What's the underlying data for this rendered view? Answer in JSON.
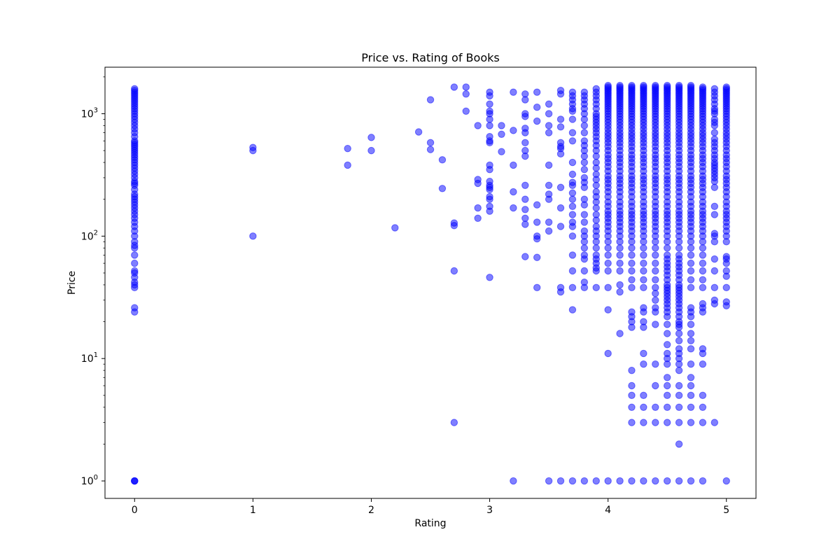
{
  "chart_data": {
    "type": "scatter",
    "title": "Price vs. Rating of Books",
    "xlabel": "Rating",
    "ylabel": "Price",
    "xlim": [
      -0.25,
      5.25
    ],
    "ylim": [
      0.72,
      2400
    ],
    "yscale": "log",
    "grid": false,
    "marker_color": "#0000ff",
    "marker_alpha": 0.5,
    "x_ticks": [
      {
        "value": 0,
        "label": "0"
      },
      {
        "value": 1,
        "label": "1"
      },
      {
        "value": 2,
        "label": "2"
      },
      {
        "value": 3,
        "label": "3"
      },
      {
        "value": 4,
        "label": "4"
      },
      {
        "value": 5,
        "label": "5"
      }
    ],
    "y_ticks": [
      {
        "value": 1,
        "base": "10",
        "exp": "0"
      },
      {
        "value": 10,
        "base": "10",
        "exp": "1"
      },
      {
        "value": 100,
        "base": "10",
        "exp": "2"
      },
      {
        "value": 1000,
        "base": "10",
        "exp": "3"
      }
    ],
    "y_minor_ticks": [
      2,
      3,
      4,
      5,
      6,
      7,
      8,
      9,
      20,
      30,
      40,
      50,
      60,
      70,
      80,
      90,
      200,
      300,
      400,
      500,
      600,
      700,
      800,
      900,
      2000
    ],
    "columns": [
      {
        "x": 0,
        "values": [
          1,
          1,
          1,
          24,
          26,
          38,
          40,
          42,
          46,
          50,
          52,
          60,
          70,
          80,
          84,
          90,
          100,
          110,
          120,
          130,
          140,
          150,
          160,
          170,
          180,
          190,
          200,
          210,
          220,
          240,
          260,
          270,
          280,
          300,
          320,
          340,
          360,
          380,
          400,
          420,
          440,
          460,
          480,
          500,
          520,
          540,
          560,
          580,
          600,
          650,
          700,
          750,
          800,
          850,
          900,
          950,
          1000,
          1050,
          1100,
          1150,
          1200,
          1250,
          1300,
          1350,
          1400,
          1450,
          1500,
          1550,
          1600
        ]
      },
      {
        "x": 1,
        "values": [
          100,
          500,
          530
        ]
      },
      {
        "x": 1.8,
        "values": [
          380,
          520
        ]
      },
      {
        "x": 2,
        "values": [
          500,
          640
        ]
      },
      {
        "x": 2.2,
        "values": [
          117
        ]
      },
      {
        "x": 2.4,
        "values": [
          710
        ]
      },
      {
        "x": 2.5,
        "values": [
          510,
          580,
          1300
        ]
      },
      {
        "x": 2.6,
        "values": [
          245,
          420
        ]
      },
      {
        "x": 2.7,
        "values": [
          3,
          52,
          122,
          128,
          1650
        ]
      },
      {
        "x": 2.8,
        "values": [
          1050,
          1450,
          1650
        ]
      },
      {
        "x": 2.9,
        "values": [
          140,
          170,
          270,
          290,
          800
        ]
      },
      {
        "x": 3,
        "values": [
          46,
          160,
          175,
          200,
          210,
          240,
          250,
          260,
          280,
          350,
          380,
          580,
          600,
          650,
          800,
          900,
          1000,
          1050,
          1200,
          1400,
          1500
        ]
      },
      {
        "x": 3.1,
        "values": [
          490,
          680,
          800
        ]
      },
      {
        "x": 3.2,
        "values": [
          1,
          170,
          230,
          380,
          730,
          1500
        ]
      },
      {
        "x": 3.3,
        "values": [
          68,
          125,
          140,
          165,
          200,
          260,
          450,
          500,
          580,
          700,
          760,
          950,
          1000,
          1300,
          1450
        ]
      },
      {
        "x": 3.4,
        "values": [
          38,
          67,
          95,
          100,
          130,
          180,
          870,
          1130,
          1500
        ]
      },
      {
        "x": 3.5,
        "values": [
          1,
          110,
          130,
          200,
          220,
          260,
          380,
          700,
          800,
          1000,
          1200
        ]
      },
      {
        "x": 3.6,
        "values": [
          1,
          35,
          38,
          120,
          170,
          250,
          470,
          520,
          540,
          580,
          780,
          900,
          1450,
          1550
        ]
      },
      {
        "x": 3.7,
        "values": [
          1,
          25,
          38,
          52,
          70,
          100,
          120,
          130,
          150,
          175,
          200,
          225,
          260,
          275,
          320,
          400,
          600,
          700,
          900,
          1050,
          1100,
          1200,
          1300,
          1400,
          1500
        ]
      },
      {
        "x": 3.8,
        "values": [
          1,
          38,
          42,
          52,
          65,
          70,
          80,
          90,
          100,
          110,
          130,
          150,
          180,
          200,
          250,
          275,
          300,
          350,
          400,
          450,
          500,
          550,
          600,
          700,
          800,
          900,
          1000,
          1100,
          1200,
          1300,
          1400,
          1500
        ]
      },
      {
        "x": 3.9,
        "values": [
          1,
          38,
          52,
          55,
          60,
          65,
          70,
          80,
          90,
          100,
          110,
          120,
          135,
          150,
          170,
          190,
          210,
          230,
          260,
          290,
          320,
          360,
          400,
          450,
          500,
          550,
          600,
          650,
          700,
          750,
          800,
          850,
          900,
          950,
          1000,
          1100,
          1200,
          1300,
          1400,
          1500,
          1600
        ]
      },
      {
        "x": 4,
        "values": [
          1,
          11,
          25,
          38,
          52,
          60,
          70,
          80,
          90,
          100,
          110,
          120,
          130,
          140,
          150,
          160,
          175,
          190,
          210,
          230,
          250,
          270,
          290,
          310,
          340,
          370,
          400,
          430,
          460,
          500,
          540,
          580,
          620,
          660,
          700,
          750,
          800,
          850,
          900,
          950,
          1000,
          1050,
          1100,
          1150,
          1200,
          1250,
          1300,
          1350,
          1400,
          1450,
          1500,
          1550,
          1600,
          1650,
          1700
        ]
      },
      {
        "x": 4.1,
        "values": [
          1,
          16,
          35,
          40,
          52,
          60,
          70,
          80,
          90,
          100,
          110,
          120,
          130,
          140,
          150,
          160,
          175,
          190,
          210,
          230,
          250,
          270,
          290,
          310,
          340,
          370,
          400,
          430,
          460,
          500,
          540,
          580,
          620,
          660,
          700,
          750,
          800,
          850,
          900,
          950,
          1000,
          1050,
          1100,
          1150,
          1200,
          1250,
          1300,
          1350,
          1400,
          1450,
          1500,
          1550,
          1600,
          1650,
          1700
        ]
      },
      {
        "x": 4.2,
        "values": [
          1,
          3,
          4,
          5,
          6,
          8,
          18,
          20,
          22,
          24,
          38,
          44,
          52,
          60,
          70,
          80,
          90,
          100,
          110,
          120,
          130,
          140,
          150,
          160,
          175,
          190,
          210,
          230,
          250,
          270,
          290,
          310,
          340,
          370,
          400,
          430,
          460,
          500,
          540,
          580,
          620,
          660,
          700,
          750,
          800,
          850,
          900,
          950,
          1000,
          1050,
          1100,
          1150,
          1200,
          1250,
          1300,
          1350,
          1400,
          1450,
          1500,
          1550,
          1600,
          1650,
          1700
        ]
      },
      {
        "x": 4.3,
        "values": [
          1,
          3,
          4,
          5,
          9,
          11,
          18,
          20,
          24,
          26,
          38,
          44,
          52,
          60,
          70,
          80,
          90,
          100,
          110,
          120,
          130,
          140,
          150,
          160,
          175,
          190,
          210,
          230,
          250,
          270,
          290,
          310,
          340,
          370,
          400,
          430,
          460,
          500,
          540,
          580,
          620,
          660,
          700,
          750,
          800,
          850,
          900,
          950,
          1000,
          1050,
          1100,
          1150,
          1200,
          1250,
          1300,
          1350,
          1400,
          1450,
          1500,
          1550,
          1600,
          1650,
          1700
        ]
      },
      {
        "x": 4.4,
        "values": [
          1,
          3,
          4,
          6,
          9,
          19,
          24,
          26,
          30,
          34,
          38,
          44,
          52,
          60,
          70,
          80,
          90,
          100,
          110,
          120,
          130,
          140,
          150,
          160,
          175,
          190,
          210,
          230,
          250,
          270,
          290,
          310,
          340,
          370,
          400,
          430,
          460,
          500,
          540,
          580,
          620,
          660,
          700,
          750,
          800,
          850,
          900,
          950,
          1000,
          1050,
          1100,
          1150,
          1200,
          1250,
          1300,
          1350,
          1400,
          1450,
          1500,
          1550,
          1600,
          1650,
          1700
        ]
      },
      {
        "x": 4.5,
        "values": [
          1,
          3,
          4,
          5,
          6,
          7,
          9,
          10,
          11,
          13,
          16,
          19,
          22,
          24,
          26,
          28,
          30,
          32,
          34,
          36,
          38,
          40,
          44,
          48,
          52,
          56,
          60,
          65,
          70,
          80,
          90,
          100,
          110,
          120,
          130,
          140,
          150,
          160,
          175,
          190,
          210,
          230,
          250,
          270,
          290,
          310,
          340,
          370,
          400,
          430,
          460,
          500,
          540,
          580,
          620,
          660,
          700,
          750,
          800,
          850,
          900,
          950,
          1000,
          1050,
          1100,
          1150,
          1200,
          1250,
          1300,
          1350,
          1400,
          1450,
          1500,
          1550,
          1600,
          1650,
          1700
        ]
      },
      {
        "x": 4.6,
        "values": [
          1,
          2,
          3,
          4,
          5,
          6,
          8,
          9,
          10,
          11,
          12,
          14,
          16,
          18,
          19,
          20,
          22,
          24,
          26,
          28,
          30,
          32,
          34,
          36,
          38,
          40,
          44,
          48,
          52,
          56,
          60,
          65,
          70,
          80,
          90,
          100,
          110,
          120,
          130,
          140,
          150,
          160,
          175,
          190,
          210,
          230,
          250,
          270,
          290,
          310,
          340,
          370,
          400,
          430,
          460,
          500,
          540,
          580,
          620,
          660,
          700,
          750,
          800,
          850,
          900,
          950,
          1000,
          1050,
          1100,
          1150,
          1200,
          1250,
          1300,
          1350,
          1400,
          1450,
          1500,
          1550,
          1600,
          1650,
          1700
        ]
      },
      {
        "x": 4.7,
        "values": [
          1,
          3,
          4,
          5,
          6,
          7,
          9,
          12,
          14,
          16,
          19,
          22,
          24,
          26,
          38,
          44,
          52,
          60,
          70,
          80,
          90,
          100,
          110,
          120,
          130,
          140,
          150,
          160,
          175,
          190,
          210,
          230,
          250,
          270,
          290,
          310,
          340,
          370,
          400,
          430,
          460,
          500,
          540,
          580,
          620,
          660,
          700,
          750,
          800,
          850,
          900,
          950,
          1000,
          1050,
          1100,
          1150,
          1200,
          1250,
          1300,
          1350,
          1400,
          1450,
          1500,
          1550,
          1600,
          1650,
          1700
        ]
      },
      {
        "x": 4.8,
        "values": [
          1,
          3,
          4,
          5,
          9,
          11,
          12,
          24,
          26,
          28,
          38,
          44,
          52,
          60,
          70,
          80,
          90,
          100,
          110,
          120,
          130,
          140,
          150,
          160,
          175,
          190,
          210,
          230,
          250,
          270,
          290,
          310,
          340,
          370,
          400,
          430,
          460,
          500,
          540,
          580,
          620,
          660,
          700,
          750,
          800,
          850,
          900,
          950,
          1000,
          1050,
          1100,
          1150,
          1200,
          1250,
          1300,
          1350,
          1400,
          1450,
          1500,
          1550,
          1600,
          1650
        ]
      },
      {
        "x": 4.9,
        "values": [
          3,
          28,
          30,
          38,
          52,
          65,
          90,
          100,
          105,
          150,
          175,
          250,
          280,
          300,
          320,
          340,
          360,
          380,
          400,
          430,
          460,
          500,
          540,
          580,
          620,
          700,
          800,
          850,
          900,
          1000,
          1050,
          1100,
          1200,
          1300,
          1400,
          1500,
          1600
        ]
      },
      {
        "x": 5,
        "values": [
          1,
          27,
          29,
          38,
          47,
          52,
          60,
          65,
          68,
          90,
          100,
          110,
          120,
          130,
          140,
          150,
          160,
          175,
          190,
          210,
          230,
          250,
          270,
          290,
          310,
          340,
          370,
          400,
          430,
          460,
          500,
          540,
          580,
          620,
          660,
          700,
          750,
          800,
          850,
          900,
          950,
          1000,
          1050,
          1100,
          1150,
          1200,
          1250,
          1300,
          1350,
          1400,
          1450,
          1500,
          1550,
          1600,
          1650
        ]
      }
    ]
  }
}
